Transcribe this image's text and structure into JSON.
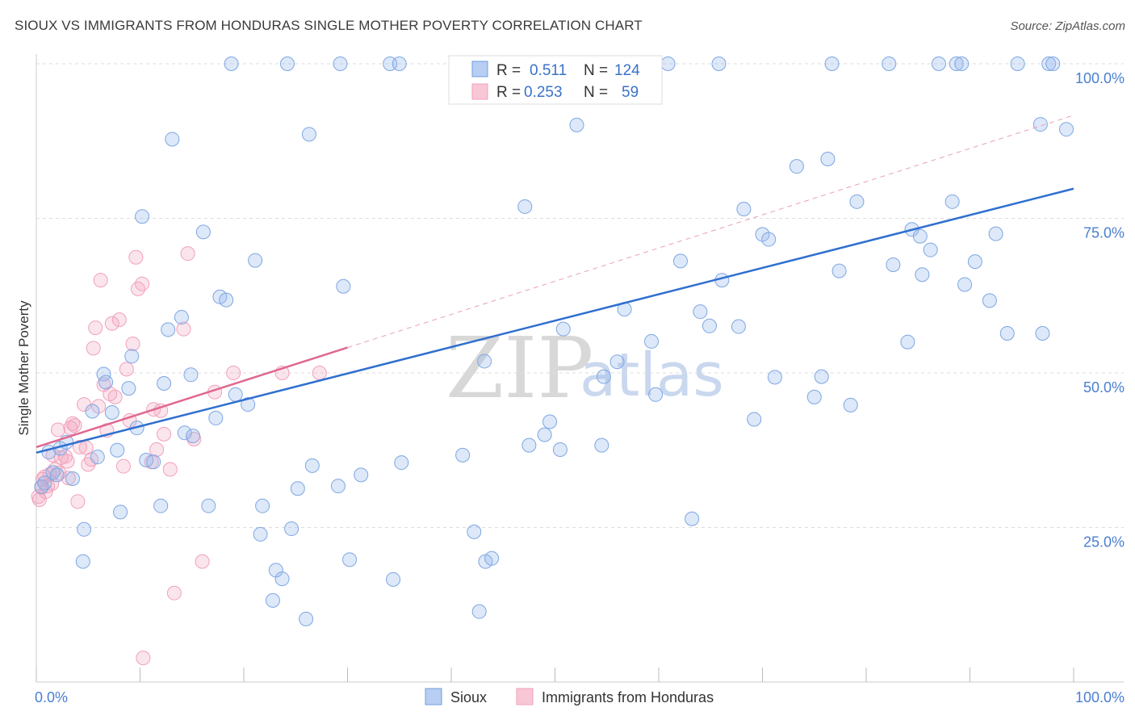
{
  "header": {
    "title": "SIOUX VS IMMIGRANTS FROM HONDURAS SINGLE MOTHER POVERTY CORRELATION CHART",
    "source": "Source: ZipAtlas.com"
  },
  "watermark": {
    "zip": "ZIP",
    "atlas": "atlas"
  },
  "legend": {
    "rows": [
      {
        "r_label": "R =",
        "r_value": "0.511",
        "n_label": "N =",
        "n_value": "124"
      },
      {
        "r_label": "R =",
        "r_value": "0.253",
        "n_label": "N =",
        "n_value": "59"
      }
    ]
  },
  "bottom_legend": {
    "items": [
      "Sioux",
      "Immigrants from Honduras"
    ]
  },
  "chart_data": {
    "type": "scatter",
    "title": "SIOUX VS IMMIGRANTS FROM HONDURAS SINGLE MOTHER POVERTY CORRELATION CHART",
    "xlabel": "",
    "ylabel": "Single Mother Poverty",
    "xlim": [
      0,
      100
    ],
    "ylim": [
      0,
      100
    ],
    "x_tick_labels": [
      "0.0%",
      "100.0%"
    ],
    "y_tick_labels": [
      "25.0%",
      "50.0%",
      "75.0%",
      "100.0%"
    ],
    "y_ticks": [
      25,
      50,
      75,
      100
    ],
    "grid": true,
    "legend_position": "top-center",
    "colors": {
      "sioux": "#6f9fe0",
      "honduras": "#f2a0bb",
      "sioux_line": "#2f6fcf",
      "honduras_line": "#e0688f"
    },
    "series": [
      {
        "name": "Sioux",
        "r": 0.511,
        "n": 124,
        "trend": {
          "x": [
            0,
            100
          ],
          "y": [
            37.1,
            79.8
          ]
        },
        "points": [
          [
            0.5,
            31.6
          ],
          [
            0.8,
            32.2
          ],
          [
            1.2,
            37.2
          ],
          [
            1.6,
            33.9
          ],
          [
            2,
            33.5
          ],
          [
            2.3,
            37.8
          ],
          [
            2.9,
            38.8
          ],
          [
            3.5,
            32.9
          ],
          [
            4.5,
            19.5
          ],
          [
            4.6,
            24.7
          ],
          [
            5.4,
            43.8
          ],
          [
            5.9,
            36.4
          ],
          [
            6.5,
            49.8
          ],
          [
            6.7,
            48.5
          ],
          [
            7.3,
            43.6
          ],
          [
            7.8,
            37.5
          ],
          [
            8.1,
            27.5
          ],
          [
            8.9,
            47.5
          ],
          [
            9.2,
            52.7
          ],
          [
            9.7,
            41.1
          ],
          [
            10.2,
            75.3
          ],
          [
            10.6,
            35.9
          ],
          [
            11.3,
            35.6
          ],
          [
            12,
            28.5
          ],
          [
            12.3,
            48.3
          ],
          [
            12.7,
            57.0
          ],
          [
            13.1,
            87.8
          ],
          [
            14,
            59.0
          ],
          [
            14.3,
            40.3
          ],
          [
            15.1,
            39.8
          ],
          [
            14.9,
            49.7
          ],
          [
            16.1,
            72.8
          ],
          [
            16.6,
            28.5
          ],
          [
            17.3,
            42.7
          ],
          [
            17.7,
            62.3
          ],
          [
            18.3,
            61.8
          ],
          [
            18.8,
            100
          ],
          [
            19.2,
            46.5
          ],
          [
            20.4,
            44.9
          ],
          [
            21.1,
            68.2
          ],
          [
            21.6,
            23.9
          ],
          [
            21.8,
            28.5
          ],
          [
            22.8,
            13.2
          ],
          [
            23.1,
            18.1
          ],
          [
            23.7,
            16.7
          ],
          [
            24.2,
            100
          ],
          [
            24.6,
            24.8
          ],
          [
            25.2,
            31.3
          ],
          [
            26,
            10.2
          ],
          [
            26.3,
            88.6
          ],
          [
            26.6,
            35.0
          ],
          [
            29.1,
            31.7
          ],
          [
            29.3,
            100
          ],
          [
            29.6,
            64.0
          ],
          [
            30.2,
            19.8
          ],
          [
            31.3,
            33.5
          ],
          [
            34.1,
            100
          ],
          [
            34.4,
            16.6
          ],
          [
            35,
            100
          ],
          [
            35.2,
            35.5
          ],
          [
            41.1,
            36.7
          ],
          [
            42.2,
            24.3
          ],
          [
            42.7,
            11.4
          ],
          [
            43.3,
            19.5
          ],
          [
            43.9,
            20.0
          ],
          [
            43.2,
            51.9
          ],
          [
            43.7,
            100
          ],
          [
            47.5,
            38.3
          ],
          [
            47.1,
            76.9
          ],
          [
            49,
            40.0
          ],
          [
            49.5,
            42.1
          ],
          [
            50.5,
            37.6
          ],
          [
            50.8,
            57.1
          ],
          [
            52.1,
            90.1
          ],
          [
            54.5,
            38.3
          ],
          [
            54.7,
            49.4
          ],
          [
            55.6,
            100
          ],
          [
            56,
            51.8
          ],
          [
            56.7,
            60.3
          ],
          [
            59.3,
            55.1
          ],
          [
            59.7,
            46.5
          ],
          [
            60.9,
            100
          ],
          [
            62.1,
            68.1
          ],
          [
            63.2,
            26.4
          ],
          [
            64,
            59.9
          ],
          [
            64.9,
            57.6
          ],
          [
            65.8,
            100
          ],
          [
            66.1,
            65.0
          ],
          [
            67.7,
            57.5
          ],
          [
            68.2,
            76.5
          ],
          [
            69.2,
            42.5
          ],
          [
            70,
            72.4
          ],
          [
            70.6,
            71.6
          ],
          [
            71.2,
            49.3
          ],
          [
            73.3,
            83.4
          ],
          [
            75,
            46.1
          ],
          [
            75.7,
            49.4
          ],
          [
            76.3,
            84.6
          ],
          [
            76.7,
            100
          ],
          [
            77.4,
            66.5
          ],
          [
            78.5,
            44.8
          ],
          [
            79.1,
            77.7
          ],
          [
            82.2,
            100
          ],
          [
            82.6,
            67.5
          ],
          [
            84,
            55.0
          ],
          [
            84.4,
            73.2
          ],
          [
            85.2,
            72.1
          ],
          [
            85.4,
            65.9
          ],
          [
            86.2,
            69.9
          ],
          [
            87,
            100
          ],
          [
            88.3,
            77.7
          ],
          [
            88.7,
            100
          ],
          [
            89.2,
            100
          ],
          [
            89.5,
            64.3
          ],
          [
            90.5,
            68.0
          ],
          [
            91.9,
            61.7
          ],
          [
            92.5,
            72.5
          ],
          [
            93.6,
            56.4
          ],
          [
            94.6,
            100
          ],
          [
            97,
            56.4
          ],
          [
            97.6,
            100
          ],
          [
            98,
            100
          ],
          [
            99.3,
            89.4
          ],
          [
            96.8,
            90.2
          ]
        ]
      },
      {
        "name": "Immigrants from Honduras",
        "r": 0.253,
        "n": 59,
        "trend": {
          "x": [
            0,
            30
          ],
          "y": [
            38.0,
            54.1
          ]
        },
        "points": [
          [
            0.2,
            30.0
          ],
          [
            0.3,
            29.5
          ],
          [
            0.5,
            31.5
          ],
          [
            0.6,
            32.8
          ],
          [
            0.8,
            33.2
          ],
          [
            0.9,
            30.8
          ],
          [
            1.1,
            31.7
          ],
          [
            1.3,
            33.6
          ],
          [
            1.5,
            32.1
          ],
          [
            1.8,
            34.4
          ],
          [
            2.1,
            40.8
          ],
          [
            2.4,
            36.3
          ],
          [
            2.8,
            36.5
          ],
          [
            3,
            35.7
          ],
          [
            3.3,
            41.1
          ],
          [
            3.5,
            41.8
          ],
          [
            3.7,
            41.5
          ],
          [
            4,
            29.2
          ],
          [
            4.2,
            38.0
          ],
          [
            4.6,
            44.9
          ],
          [
            5,
            35.2
          ],
          [
            5.3,
            36.0
          ],
          [
            5.5,
            54.0
          ],
          [
            5.7,
            57.3
          ],
          [
            6,
            44.6
          ],
          [
            6.2,
            65.0
          ],
          [
            6.5,
            48.1
          ],
          [
            6.8,
            40.7
          ],
          [
            7.1,
            46.6
          ],
          [
            7.3,
            58.0
          ],
          [
            7.6,
            46.1
          ],
          [
            8,
            58.6
          ],
          [
            8.4,
            34.9
          ],
          [
            8.7,
            50.6
          ],
          [
            9,
            42.3
          ],
          [
            9.3,
            54.7
          ],
          [
            9.6,
            68.7
          ],
          [
            9.8,
            63.6
          ],
          [
            10.2,
            64.4
          ],
          [
            10.3,
            3.9
          ],
          [
            11.1,
            35.6
          ],
          [
            11.3,
            44.1
          ],
          [
            11.6,
            37.6
          ],
          [
            12,
            43.9
          ],
          [
            12.3,
            40.1
          ],
          [
            12.9,
            34.4
          ],
          [
            13.3,
            14.4
          ],
          [
            14.2,
            57.1
          ],
          [
            14.6,
            69.3
          ],
          [
            15.2,
            39.3
          ],
          [
            16,
            19.5
          ],
          [
            17.2,
            46.9
          ],
          [
            19,
            50.0
          ],
          [
            23.7,
            50.0
          ],
          [
            27.3,
            50.0
          ],
          [
            2.2,
            33.8
          ],
          [
            1.6,
            36.7
          ],
          [
            4.8,
            37.9
          ],
          [
            3.1,
            33.0
          ]
        ]
      }
    ]
  }
}
